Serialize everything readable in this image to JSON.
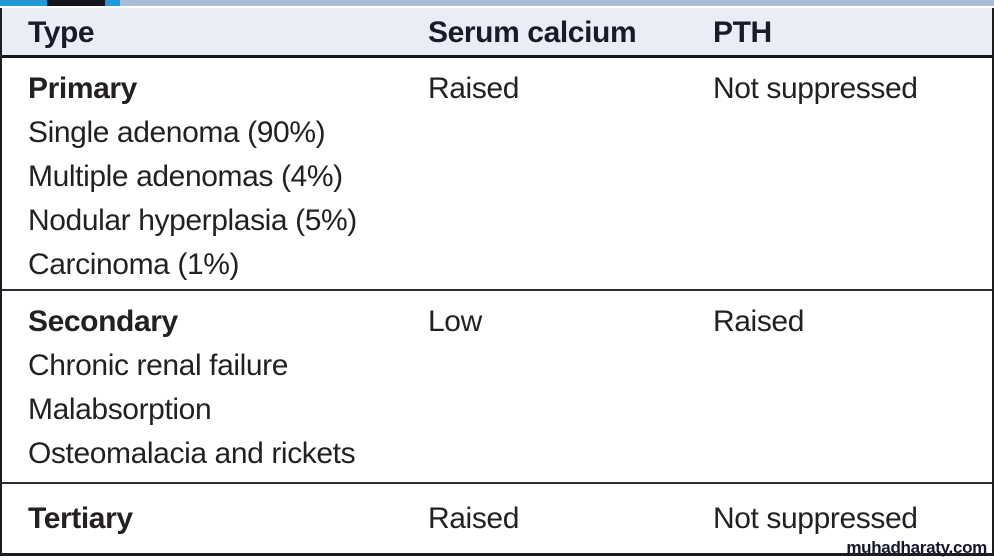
{
  "page": {
    "watermark": "muhadharaty.com"
  },
  "colors": {
    "header_background": "#eaedf5",
    "strip_bright_blue": "#1f9ad6",
    "strip_dark": "#14141c",
    "strip_steel_blue": "#aabfd7",
    "rule_dark": "#1a1d22",
    "text": "#231f23"
  },
  "table": {
    "columns": [
      {
        "label": "Type"
      },
      {
        "label": "Serum calcium"
      },
      {
        "label": "PTH"
      }
    ],
    "rows": [
      {
        "type_title": "Primary",
        "details": [
          "Single adenoma (90%)",
          "Multiple adenomas (4%)",
          "Nodular hyperplasia (5%)",
          "Carcinoma (1%)"
        ],
        "serum_calcium": "Raised",
        "pth": "Not suppressed"
      },
      {
        "type_title": "Secondary",
        "details": [
          "Chronic renal failure",
          "Malabsorption",
          "Osteomalacia and rickets"
        ],
        "serum_calcium": "Low",
        "pth": "Raised"
      },
      {
        "type_title": "Tertiary",
        "details": [],
        "serum_calcium": "Raised",
        "pth": "Not suppressed"
      }
    ]
  }
}
